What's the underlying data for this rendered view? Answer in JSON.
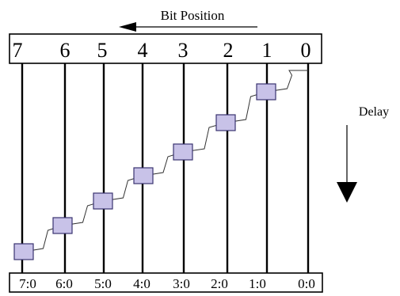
{
  "header": {
    "title": "Bit Position"
  },
  "side": {
    "delay_label": "Delay"
  },
  "bit_positions": [
    "7",
    "6",
    "5",
    "4",
    "3",
    "2",
    "1",
    "0"
  ],
  "bottom_labels": [
    "7:0",
    "6:0",
    "5:0",
    "4:0",
    "3:0",
    "2:0",
    "1:0",
    "0:0"
  ],
  "colors": {
    "line": "#000000",
    "box_fill": "#c8c2e8",
    "box_stroke": "#3a3470",
    "background": "#ffffff"
  }
}
